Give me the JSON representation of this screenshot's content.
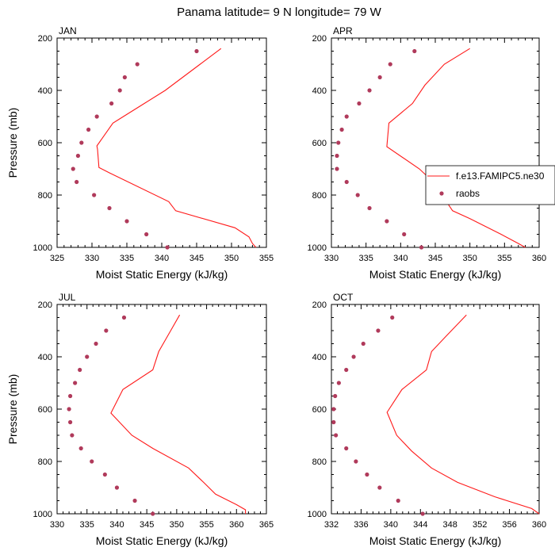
{
  "chart_data": {
    "title": "Panama  latitude= 9 N longitude= 79 W",
    "xlabel": "Moist Static Energy (kJ/kg)",
    "ylabel": "Pressure (mb)",
    "colors": {
      "model": "#ff1a1a",
      "obs": "#b03a5b"
    },
    "legend": {
      "model": "f.e13.FAMIPC5.ne30",
      "obs": "raobs",
      "placement": "right of APR panel"
    },
    "panels": [
      {
        "type": "line",
        "month": "JAN",
        "xlim": [
          325,
          355
        ],
        "xticks": [
          325,
          330,
          335,
          340,
          345,
          350,
          355
        ],
        "ylim": [
          1000,
          200
        ],
        "yticks": [
          200,
          400,
          600,
          800,
          1000
        ],
        "show_ylabel": true,
        "model": {
          "pressure": [
            240,
            300,
            400,
            450,
            500,
            525,
            612,
            625,
            695,
            715,
            825,
            860,
            925,
            960,
            985,
            1000
          ],
          "mse": [
            348.5,
            345.5,
            340.5,
            337.5,
            334.5,
            333.0,
            330.7,
            330.8,
            331.0,
            332.5,
            341.0,
            342.0,
            350.5,
            352.5,
            353.0,
            353.5
          ]
        },
        "obs": {
          "pressure": [
            250,
            300,
            350,
            400,
            450,
            500,
            550,
            600,
            650,
            700,
            750,
            800,
            850,
            900,
            950,
            1000
          ],
          "mse": [
            345.0,
            336.5,
            334.7,
            334.0,
            332.8,
            330.7,
            329.5,
            328.5,
            328.0,
            327.3,
            327.8,
            330.3,
            332.5,
            335.0,
            337.8,
            340.8
          ]
        }
      },
      {
        "type": "line",
        "month": "APR",
        "xlim": [
          330,
          360
        ],
        "xticks": [
          330,
          335,
          340,
          345,
          350,
          355,
          360
        ],
        "ylim": [
          1000,
          200
        ],
        "yticks": [
          200,
          400,
          600,
          800,
          1000
        ],
        "show_ylabel": false,
        "model": {
          "pressure": [
            240,
            300,
            380,
            450,
            525,
            615,
            700,
            750,
            860,
            890,
            950,
            985,
            1000
          ],
          "mse": [
            350.0,
            346.3,
            343.5,
            341.7,
            338.3,
            338.0,
            342.7,
            344.7,
            347.5,
            350.0,
            354.5,
            357.0,
            358.0
          ]
        },
        "obs": {
          "pressure": [
            250,
            300,
            350,
            400,
            450,
            500,
            550,
            600,
            650,
            700,
            750,
            800,
            850,
            900,
            950,
            1000
          ],
          "mse": [
            342.0,
            338.5,
            337.0,
            335.5,
            334.0,
            332.2,
            331.5,
            331.0,
            330.8,
            330.8,
            332.2,
            333.8,
            335.5,
            338.0,
            340.5,
            343.0
          ]
        }
      },
      {
        "type": "line",
        "month": "JUL",
        "xlim": [
          330,
          365
        ],
        "xticks": [
          330,
          335,
          340,
          345,
          350,
          355,
          360,
          365
        ],
        "ylim": [
          1000,
          200
        ],
        "yticks": [
          200,
          400,
          600,
          800,
          1000
        ],
        "show_ylabel": true,
        "model": {
          "pressure": [
            240,
            300,
            380,
            450,
            525,
            615,
            700,
            750,
            825,
            880,
            925,
            965,
            985,
            1000
          ],
          "mse": [
            350.5,
            349.0,
            347.0,
            346.0,
            341.0,
            339.0,
            342.5,
            346.0,
            352.0,
            354.5,
            356.5,
            360.0,
            361.5,
            361.5
          ]
        },
        "obs": {
          "pressure": [
            250,
            300,
            350,
            400,
            450,
            500,
            550,
            600,
            650,
            700,
            750,
            800,
            850,
            900,
            950,
            1000
          ],
          "mse": [
            341.2,
            338.2,
            336.5,
            335.0,
            333.8,
            333.0,
            332.2,
            332.0,
            332.2,
            332.5,
            334.0,
            335.8,
            338.0,
            340.0,
            343.0,
            346.0
          ]
        }
      },
      {
        "type": "line",
        "month": "OCT",
        "xlim": [
          332,
          360
        ],
        "xticks": [
          332,
          336,
          340,
          344,
          348,
          352,
          356,
          360
        ],
        "ylim": [
          1000,
          200
        ],
        "yticks": [
          200,
          400,
          600,
          800,
          1000
        ],
        "show_ylabel": false,
        "model": {
          "pressure": [
            240,
            320,
            380,
            450,
            525,
            612,
            700,
            760,
            825,
            880,
            935,
            980,
            1000
          ],
          "mse": [
            350.2,
            347.5,
            345.5,
            344.8,
            341.5,
            339.5,
            340.8,
            342.8,
            345.5,
            349.0,
            354.0,
            359.0,
            360.0
          ]
        },
        "obs": {
          "pressure": [
            250,
            300,
            350,
            400,
            450,
            500,
            550,
            600,
            650,
            700,
            750,
            800,
            850,
            900,
            950,
            1000
          ],
          "mse": [
            340.2,
            338.3,
            336.3,
            335.0,
            334.0,
            333.0,
            332.5,
            332.3,
            332.3,
            332.6,
            334.0,
            335.3,
            336.8,
            338.5,
            341.0,
            344.3
          ]
        }
      }
    ]
  }
}
